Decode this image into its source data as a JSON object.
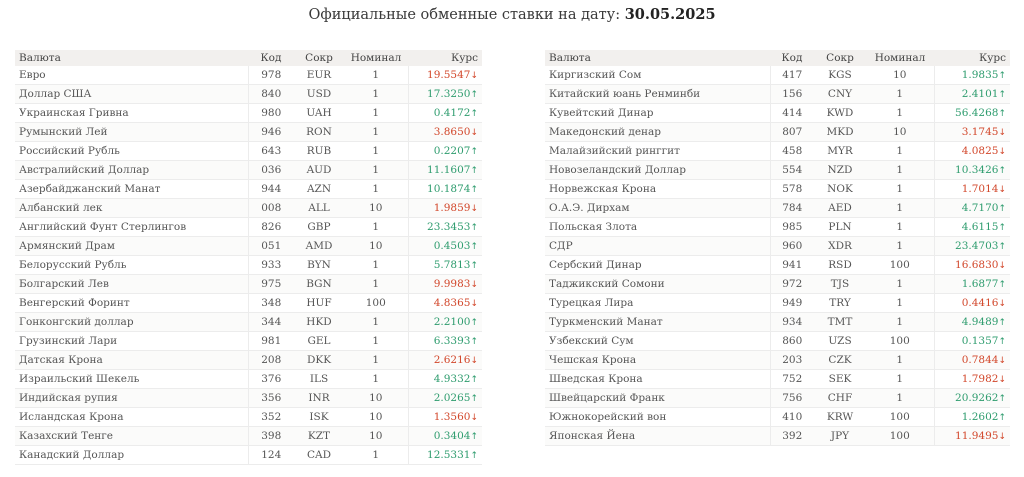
{
  "header": {
    "title_prefix": "Официальные обменные ставки на дату: ",
    "title_date": "30.05.2025"
  },
  "columns": {
    "name": "Валюта",
    "code": "Код",
    "abbr": "Сокр",
    "nominal": "Номинал",
    "rate": "Курс"
  },
  "colors": {
    "up": "#2e9c6e",
    "down": "#d2472b"
  },
  "arrows": {
    "up": "↑",
    "down": "↓"
  },
  "left_rows": [
    {
      "name": "Евро",
      "code": "978",
      "abbr": "EUR",
      "nominal": "1",
      "rate": "19.5547",
      "dir": "down"
    },
    {
      "name": "Доллар США",
      "code": "840",
      "abbr": "USD",
      "nominal": "1",
      "rate": "17.3250",
      "dir": "up"
    },
    {
      "name": "Украинская Гривна",
      "code": "980",
      "abbr": "UAH",
      "nominal": "1",
      "rate": "0.4172",
      "dir": "up"
    },
    {
      "name": "Румынский Лей",
      "code": "946",
      "abbr": "RON",
      "nominal": "1",
      "rate": "3.8650",
      "dir": "down"
    },
    {
      "name": "Российский Рубль",
      "code": "643",
      "abbr": "RUB",
      "nominal": "1",
      "rate": "0.2207",
      "dir": "up"
    },
    {
      "name": "Австралийский Доллар",
      "code": "036",
      "abbr": "AUD",
      "nominal": "1",
      "rate": "11.1607",
      "dir": "up"
    },
    {
      "name": "Азербайджанский Манат",
      "code": "944",
      "abbr": "AZN",
      "nominal": "1",
      "rate": "10.1874",
      "dir": "up"
    },
    {
      "name": "Албанский лек",
      "code": "008",
      "abbr": "ALL",
      "nominal": "10",
      "rate": "1.9859",
      "dir": "down"
    },
    {
      "name": "Английский Фунт Стерлингов",
      "code": "826",
      "abbr": "GBP",
      "nominal": "1",
      "rate": "23.3453",
      "dir": "up"
    },
    {
      "name": "Армянский Драм",
      "code": "051",
      "abbr": "AMD",
      "nominal": "10",
      "rate": "0.4503",
      "dir": "up"
    },
    {
      "name": "Белорусский Рубль",
      "code": "933",
      "abbr": "BYN",
      "nominal": "1",
      "rate": "5.7813",
      "dir": "up"
    },
    {
      "name": "Болгарский Лев",
      "code": "975",
      "abbr": "BGN",
      "nominal": "1",
      "rate": "9.9983",
      "dir": "down"
    },
    {
      "name": "Венгерский Форинт",
      "code": "348",
      "abbr": "HUF",
      "nominal": "100",
      "rate": "4.8365",
      "dir": "down"
    },
    {
      "name": "Гонконгский доллар",
      "code": "344",
      "abbr": "HKD",
      "nominal": "1",
      "rate": "2.2100",
      "dir": "up"
    },
    {
      "name": "Грузинский Лари",
      "code": "981",
      "abbr": "GEL",
      "nominal": "1",
      "rate": "6.3393",
      "dir": "up"
    },
    {
      "name": "Датская Крона",
      "code": "208",
      "abbr": "DKK",
      "nominal": "1",
      "rate": "2.6216",
      "dir": "down"
    },
    {
      "name": "Израильский Шекель",
      "code": "376",
      "abbr": "ILS",
      "nominal": "1",
      "rate": "4.9332",
      "dir": "up"
    },
    {
      "name": "Индийская рупия",
      "code": "356",
      "abbr": "INR",
      "nominal": "10",
      "rate": "2.0265",
      "dir": "up"
    },
    {
      "name": "Исландская Крона",
      "code": "352",
      "abbr": "ISK",
      "nominal": "10",
      "rate": "1.3560",
      "dir": "down"
    },
    {
      "name": "Казахский Тенге",
      "code": "398",
      "abbr": "KZT",
      "nominal": "10",
      "rate": "0.3404",
      "dir": "up"
    },
    {
      "name": "Канадский Доллар",
      "code": "124",
      "abbr": "CAD",
      "nominal": "1",
      "rate": "12.5331",
      "dir": "up"
    }
  ],
  "right_rows": [
    {
      "name": "Киргизский Сом",
      "code": "417",
      "abbr": "KGS",
      "nominal": "10",
      "rate": "1.9835",
      "dir": "up"
    },
    {
      "name": "Китайский юань Ренминби",
      "code": "156",
      "abbr": "CNY",
      "nominal": "1",
      "rate": "2.4101",
      "dir": "up"
    },
    {
      "name": "Кувейтский Динар",
      "code": "414",
      "abbr": "KWD",
      "nominal": "1",
      "rate": "56.4268",
      "dir": "up"
    },
    {
      "name": "Македонский денар",
      "code": "807",
      "abbr": "MKD",
      "nominal": "10",
      "rate": "3.1745",
      "dir": "down"
    },
    {
      "name": "Малайзийский ринггит",
      "code": "458",
      "abbr": "MYR",
      "nominal": "1",
      "rate": "4.0825",
      "dir": "down"
    },
    {
      "name": "Новозеландский Доллар",
      "code": "554",
      "abbr": "NZD",
      "nominal": "1",
      "rate": "10.3426",
      "dir": "up"
    },
    {
      "name": "Норвежская Крона",
      "code": "578",
      "abbr": "NOK",
      "nominal": "1",
      "rate": "1.7014",
      "dir": "down"
    },
    {
      "name": "О.А.Э. Дирхам",
      "code": "784",
      "abbr": "AED",
      "nominal": "1",
      "rate": "4.7170",
      "dir": "up"
    },
    {
      "name": "Польская Злота",
      "code": "985",
      "abbr": "PLN",
      "nominal": "1",
      "rate": "4.6115",
      "dir": "up"
    },
    {
      "name": "СДР",
      "code": "960",
      "abbr": "XDR",
      "nominal": "1",
      "rate": "23.4703",
      "dir": "up"
    },
    {
      "name": "Сербский Динар",
      "code": "941",
      "abbr": "RSD",
      "nominal": "100",
      "rate": "16.6830",
      "dir": "down"
    },
    {
      "name": "Таджикский Сомони",
      "code": "972",
      "abbr": "TJS",
      "nominal": "1",
      "rate": "1.6877",
      "dir": "up"
    },
    {
      "name": "Турецкая Лира",
      "code": "949",
      "abbr": "TRY",
      "nominal": "1",
      "rate": "0.4416",
      "dir": "down"
    },
    {
      "name": "Туркменский Манат",
      "code": "934",
      "abbr": "TMT",
      "nominal": "1",
      "rate": "4.9489",
      "dir": "up"
    },
    {
      "name": "Узбекский Сум",
      "code": "860",
      "abbr": "UZS",
      "nominal": "100",
      "rate": "0.1357",
      "dir": "up"
    },
    {
      "name": "Чешская Крона",
      "code": "203",
      "abbr": "CZK",
      "nominal": "1",
      "rate": "0.7844",
      "dir": "down"
    },
    {
      "name": "Шведская Крона",
      "code": "752",
      "abbr": "SEK",
      "nominal": "1",
      "rate": "1.7982",
      "dir": "down"
    },
    {
      "name": "Швейцарский Франк",
      "code": "756",
      "abbr": "CHF",
      "nominal": "1",
      "rate": "20.9262",
      "dir": "up"
    },
    {
      "name": "Южнокорейский вон",
      "code": "410",
      "abbr": "KRW",
      "nominal": "100",
      "rate": "1.2602",
      "dir": "up"
    },
    {
      "name": "Японская Йена",
      "code": "392",
      "abbr": "JPY",
      "nominal": "100",
      "rate": "11.9495",
      "dir": "down"
    }
  ]
}
